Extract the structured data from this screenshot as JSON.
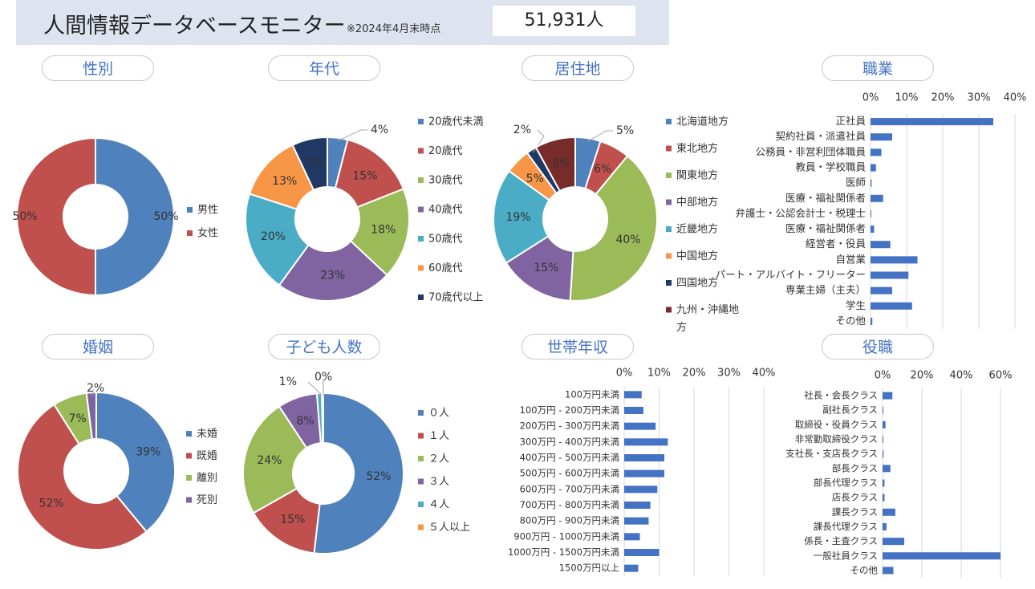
{
  "header": {
    "title": "人間情報データベースモニター",
    "as_of": "※2024年4月末時点",
    "total_count": "51,931人"
  },
  "colors": {
    "blue": "#4f81bd",
    "red": "#c0504d",
    "green": "#9bbb59",
    "purple": "#8064a2",
    "cyan": "#4bacc6",
    "orange": "#f79646",
    "navy": "#1f3864",
    "maroon": "#772c2a",
    "bar": "#4472c4"
  },
  "chart_data": [
    {
      "id": "gender",
      "type": "pie",
      "title": "性別",
      "slices": [
        {
          "name": "男性",
          "value": 50,
          "label": "50%"
        },
        {
          "name": "女性",
          "value": 50,
          "label": "50%"
        }
      ]
    },
    {
      "id": "age",
      "type": "pie",
      "title": "年代",
      "slices": [
        {
          "name": "20歳代未満",
          "value": 4,
          "label": "4%"
        },
        {
          "name": "20歳代",
          "value": 15,
          "label": "15%"
        },
        {
          "name": "30歳代",
          "value": 18,
          "label": "18%"
        },
        {
          "name": "40歳代",
          "value": 23,
          "label": "23%"
        },
        {
          "name": "50歳代",
          "value": 20,
          "label": "20%"
        },
        {
          "name": "60歳代",
          "value": 13,
          "label": "13%"
        },
        {
          "name": "70歳代以上",
          "value": 7,
          "label": "7%"
        }
      ]
    },
    {
      "id": "residence",
      "type": "pie",
      "title": "居住地",
      "slices": [
        {
          "name": "北海道地方",
          "value": 5,
          "label": "5%"
        },
        {
          "name": "東北地方",
          "value": 6,
          "label": "6%"
        },
        {
          "name": "関東地方",
          "value": 40,
          "label": "40%"
        },
        {
          "name": "中部地方",
          "value": 15,
          "label": "15%"
        },
        {
          "name": "近畿地方",
          "value": 19,
          "label": "19%"
        },
        {
          "name": "中国地方",
          "value": 5,
          "label": "5%"
        },
        {
          "name": "四国地方",
          "value": 2,
          "label": "2%"
        },
        {
          "name": "九州・沖縄地方",
          "value": 8,
          "label": "8%"
        }
      ]
    },
    {
      "id": "occupation",
      "type": "bar",
      "title": "職業",
      "xlim": [
        0,
        40
      ],
      "ticks": [
        "0%",
        "10%",
        "20%",
        "30%",
        "40%"
      ],
      "categories": [
        "正社員",
        "契約社員・派遣社員",
        "公務員・非営利団体職員",
        "教員・学校職員",
        "医師",
        "医療・福祉関係者",
        "弁護士・公認会計士・税理士",
        "医療・福祉関係者",
        "経営者・役員",
        "自営業",
        "パート・アルバイト・フリーター",
        "専業主婦（主夫）",
        "学生",
        "その他"
      ],
      "values": [
        34,
        6,
        3,
        1.5,
        0.3,
        3.5,
        0.2,
        1,
        5.5,
        13,
        10.5,
        6,
        11.5,
        0.5
      ]
    },
    {
      "id": "marital",
      "type": "pie",
      "title": "婚姻",
      "slices": [
        {
          "name": "未婚",
          "value": 39,
          "label": "39%"
        },
        {
          "name": "既婚",
          "value": 52,
          "label": "52%"
        },
        {
          "name": "離別",
          "value": 7,
          "label": "7%"
        },
        {
          "name": "死別",
          "value": 2,
          "label": "2%"
        }
      ]
    },
    {
      "id": "children",
      "type": "pie",
      "title": "子ども人数",
      "slices": [
        {
          "name": "０人",
          "value": 52,
          "label": "52%"
        },
        {
          "name": "１人",
          "value": 15,
          "label": "15%"
        },
        {
          "name": "２人",
          "value": 24,
          "label": "24%"
        },
        {
          "name": "３人",
          "value": 8,
          "label": "8%"
        },
        {
          "name": "４人",
          "value": 1,
          "label": "1%"
        },
        {
          "name": "５人以上",
          "value": 0.3,
          "label": "0%"
        }
      ]
    },
    {
      "id": "income",
      "type": "bar",
      "title": "世帯年収",
      "xlim": [
        0,
        40
      ],
      "ticks": [
        "0%",
        "10%",
        "20%",
        "30%",
        "40%"
      ],
      "categories": [
        "100万円未満",
        "100万円 - 200万円未満",
        "200万円 - 300万円未満",
        "300万円 - 400万円未満",
        "400万円 - 500万円未満",
        "500万円 - 600万円未満",
        "600万円 - 700万円未満",
        "700万円 - 800万円未満",
        "800万円 - 900万円未満",
        "900万円 - 1000万円未満",
        "1000万円 - 1500万円未満",
        "1500万円以上"
      ],
      "values": [
        5,
        5.5,
        9,
        12.5,
        11.5,
        11.5,
        9.5,
        7.5,
        7,
        4.5,
        10,
        4
      ]
    },
    {
      "id": "position",
      "type": "bar",
      "title": "役職",
      "xlim": [
        0,
        60
      ],
      "ticks": [
        "0%",
        "20%",
        "40%",
        "60%"
      ],
      "categories": [
        "社長・会長クラス",
        "副社長クラス",
        "取締役・役員クラス",
        "非常勤取締役クラス",
        "支社長・支店長クラス",
        "部長クラス",
        "部長代理クラス",
        "店長クラス",
        "課長クラス",
        "課長代理クラス",
        "係長・主査クラス",
        "一般社員クラス",
        "その他"
      ],
      "values": [
        5,
        0.2,
        1.5,
        0.2,
        0.5,
        4,
        1,
        1,
        6.5,
        2,
        11,
        60,
        5.5
      ]
    }
  ]
}
